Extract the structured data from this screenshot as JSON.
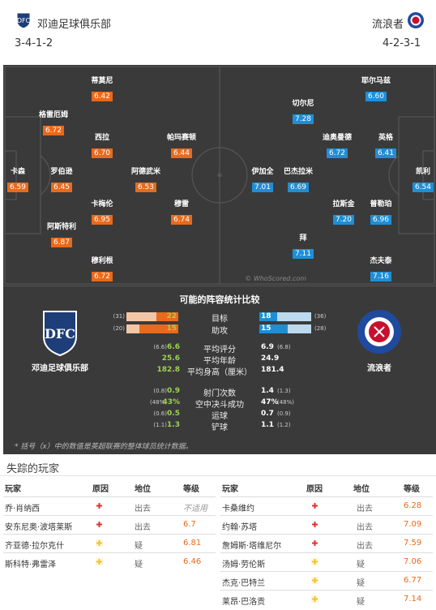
{
  "header": {
    "home": {
      "name": "邓迪足球俱乐部",
      "formation": "3-4-1-2"
    },
    "away": {
      "name": "流浪者",
      "formation": "4-2-3-1"
    }
  },
  "pitch": {
    "watermark": "© WhoScored.com",
    "home_players": [
      {
        "name": "蒂莫尼",
        "rating": "6.42"
      },
      {
        "name": "格雷厄姆",
        "rating": "6.72"
      },
      {
        "name": "西拉",
        "rating": "6.70"
      },
      {
        "name": "帕玛赛顿",
        "rating": "6.44"
      },
      {
        "name": "卡森",
        "rating": "6.59"
      },
      {
        "name": "罗伯逊",
        "rating": "6.45"
      },
      {
        "name": "阿德武米",
        "rating": "6.53"
      },
      {
        "name": "卡梅伦",
        "rating": "6.95"
      },
      {
        "name": "穆雷",
        "rating": "6.74"
      },
      {
        "name": "阿斯特利",
        "rating": "6.87"
      },
      {
        "name": "穆利根",
        "rating": "6.72"
      }
    ],
    "away_players": [
      {
        "name": "耶尔马兹",
        "rating": "6.60"
      },
      {
        "name": "切尔尼",
        "rating": "7.28"
      },
      {
        "name": "迪奥曼德",
        "rating": "6.72"
      },
      {
        "name": "英格",
        "rating": "6.41"
      },
      {
        "name": "伊加全",
        "rating": "7.01"
      },
      {
        "name": "巴杰拉米",
        "rating": "6.69"
      },
      {
        "name": "凯利",
        "rating": "6.54"
      },
      {
        "name": "拉斯金",
        "rating": "7.20"
      },
      {
        "name": "普勒珀",
        "rating": "6.96"
      },
      {
        "name": "拜",
        "rating": "7.11"
      },
      {
        "name": "杰夫泰",
        "rating": "7.16"
      }
    ]
  },
  "stats": {
    "title": "可能的阵容统计比较",
    "home_crest_label": "邓迪足球俱乐部",
    "away_crest_label": "流浪者",
    "bars": [
      {
        "label": "目标",
        "home": "22",
        "home_avg": "(31)",
        "away": "18",
        "away_avg": "(36)",
        "home_frac": 0.42,
        "away_frac": 0.35
      },
      {
        "label": "助攻",
        "home": "15",
        "home_avg": "(20)",
        "away": "15",
        "away_avg": "(28)",
        "home_frac": 0.75,
        "away_frac": 0.55
      }
    ],
    "rows": [
      {
        "label": "平均评分",
        "home": "6.6",
        "home_avg": "(6.6)",
        "away": "6.9",
        "away_avg": "(6.8)"
      },
      {
        "label": "平均年龄",
        "home": "25.6",
        "home_avg": "",
        "away": "24.9",
        "away_avg": ""
      },
      {
        "label": "平均身高（厘米）",
        "home": "182.8",
        "home_avg": "",
        "away": "181.4",
        "away_avg": ""
      },
      {
        "label": "射门次数",
        "home": "0.9",
        "home_avg": "(0.8)",
        "away": "1.4",
        "away_avg": "(1.3)"
      },
      {
        "label": "空中决斗成功",
        "home": "43%",
        "home_avg": "(48%)",
        "away": "47%",
        "away_avg": "(48%)"
      },
      {
        "label": "运球",
        "home": "0.5",
        "home_avg": "(0.6)",
        "away": "0.7",
        "away_avg": "(0.9)"
      },
      {
        "label": "铲球",
        "home": "1.3",
        "home_avg": "(1.1)",
        "away": "1.1",
        "away_avg": "(1.2)"
      }
    ],
    "footnote": "* 括号（x）中的数值是英超联赛的整体球员统计数据。"
  },
  "missing": {
    "title": "失踪的玩家",
    "headers": {
      "player": "玩家",
      "reason": "原因",
      "status": "地位",
      "grade": "等级"
    },
    "home": [
      {
        "player": "乔·肖纳西",
        "reason": "red-cross",
        "status": "出去",
        "grade": "不适用"
      },
      {
        "player": "安东尼奥·波塔莱斯",
        "reason": "red-cross",
        "status": "出去",
        "grade": "6.7"
      },
      {
        "player": "齐亚德·拉尔克什",
        "reason": "yellow-cross",
        "status": "疑",
        "grade": "6.81"
      },
      {
        "player": "斯科特·弗雷泽",
        "reason": "yellow-cross",
        "status": "疑",
        "grade": "6.46"
      }
    ],
    "away": [
      {
        "player": "卡桑维约",
        "reason": "red-cross",
        "status": "出去",
        "grade": "6.28"
      },
      {
        "player": "约翰·苏塔",
        "reason": "red-cross",
        "status": "出去",
        "grade": "7.09"
      },
      {
        "player": "詹姆斯·塔维尼尔",
        "reason": "red-cross",
        "status": "出去",
        "grade": "7.59"
      },
      {
        "player": "汤姆·劳伦斯",
        "reason": "yellow-cross",
        "status": "疑",
        "grade": "7.06"
      },
      {
        "player": "杰克·巴特兰",
        "reason": "yellow-cross",
        "status": "疑",
        "grade": "6.77"
      },
      {
        "player": "莱昂·巴洛贡",
        "reason": "yellow-cross",
        "status": "疑",
        "grade": "7.14"
      }
    ]
  },
  "colors": {
    "home_rating": "#e86a1c",
    "away_rating": "#1e8fd6",
    "pitch": "#3a3a3a",
    "lime": "#9bd44a"
  }
}
